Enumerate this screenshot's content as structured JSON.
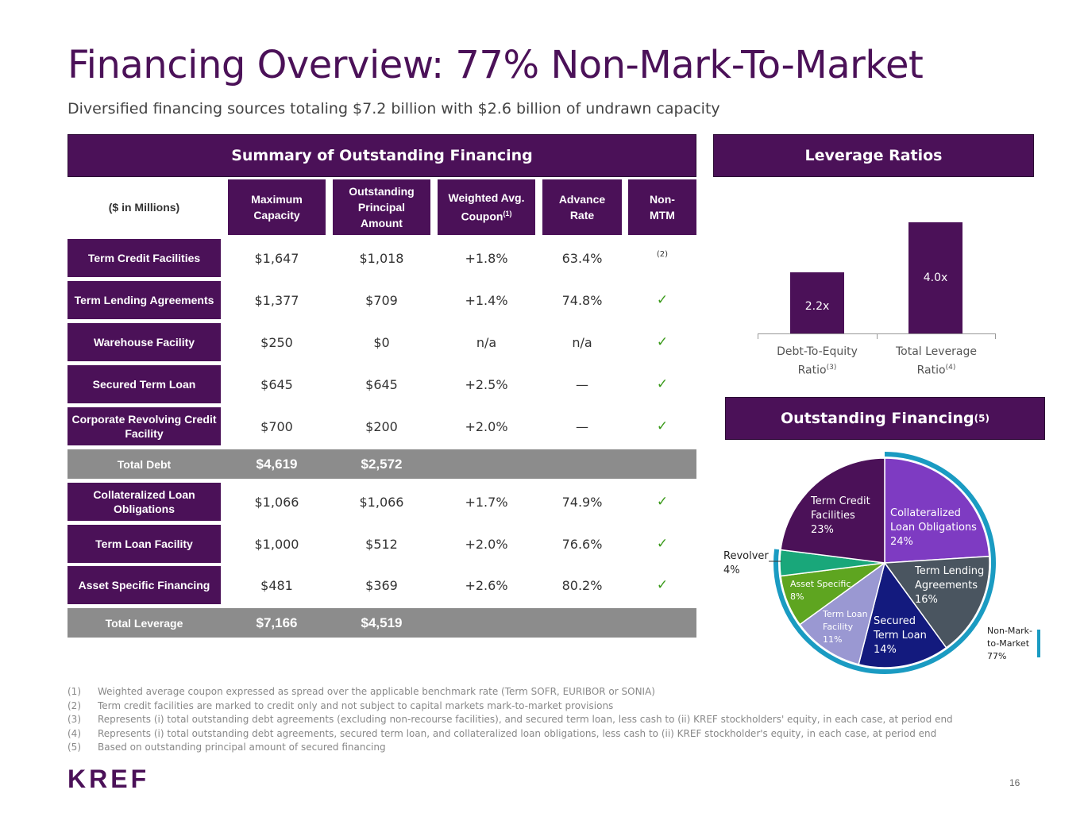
{
  "title": "Financing Overview: 77% Non-Mark-To-Market",
  "subtitle": "Diversified financing sources totaling $7.2 billion with $2.6 billion of undrawn capacity",
  "summary_panel": {
    "title": "Summary of Outstanding Financing",
    "corner_label": "($ in Millions)",
    "columns": [
      {
        "line1": "Maximum",
        "line2": "Capacity",
        "line3": "",
        "sup": ""
      },
      {
        "line1": "Outstanding",
        "line2": "Principal",
        "line3": "Amount",
        "sup": ""
      },
      {
        "line1": "Weighted Avg.",
        "line2": "Coupon",
        "line3": "",
        "sup": "(1)"
      },
      {
        "line1": "Advance",
        "line2": "Rate",
        "line3": "",
        "sup": ""
      },
      {
        "line1": "Non-",
        "line2": "MTM",
        "line3": "",
        "sup": ""
      }
    ],
    "rows": [
      {
        "label": "Term Credit Facilities",
        "max": "$1,647",
        "outstanding": "$1,018",
        "coupon": "+1.8%",
        "advance": "63.4%",
        "mtm": "(2)"
      },
      {
        "label": "Term Lending Agreements",
        "max": "$1,377",
        "outstanding": "$709",
        "coupon": "+1.4%",
        "advance": "74.8%",
        "mtm": "✓"
      },
      {
        "label": "Warehouse Facility",
        "max": "$250",
        "outstanding": "$0",
        "coupon": "n/a",
        "advance": "n/a",
        "mtm": "✓"
      },
      {
        "label": "Secured Term Loan",
        "max": "$645",
        "outstanding": "$645",
        "coupon": "+2.5%",
        "advance": "—",
        "mtm": "✓"
      },
      {
        "label": "Corporate Revolving Credit Facility",
        "max": "$700",
        "outstanding": "$200",
        "coupon": "+2.0%",
        "advance": "—",
        "mtm": "✓"
      }
    ],
    "total_debt": {
      "label": "Total Debt",
      "max": "$4,619",
      "outstanding": "$2,572"
    },
    "rows2": [
      {
        "label": "Collateralized Loan Obligations",
        "max": "$1,066",
        "outstanding": "$1,066",
        "coupon": "+1.7%",
        "advance": "74.9%",
        "mtm": "✓"
      },
      {
        "label": "Term Loan Facility",
        "max": "$1,000",
        "outstanding": "$512",
        "coupon": "+2.0%",
        "advance": "76.6%",
        "mtm": "✓"
      },
      {
        "label": "Asset Specific Financing",
        "max": "$481",
        "outstanding": "$369",
        "coupon": "+2.6%",
        "advance": "80.2%",
        "mtm": "✓"
      }
    ],
    "total_leverage": {
      "label": "Total Leverage",
      "max": "$7,166",
      "outstanding": "$4,519"
    }
  },
  "leverage_panel": {
    "title": "Leverage Ratios"
  },
  "pie_panel": {
    "title": "Outstanding Financing",
    "title_sup": "(5)",
    "arc_label": [
      "Non-Mark-",
      "to-Market",
      "77%"
    ]
  },
  "chart_data": [
    {
      "type": "bar",
      "title": "Leverage Ratios",
      "categories": [
        "Debt-To-Equity Ratio(3)",
        "Total Leverage Ratio(4)"
      ],
      "category_lines": [
        [
          "Debt-To-Equity",
          "Ratio",
          "(3)"
        ],
        [
          "Total Leverage",
          "Ratio",
          "(4)"
        ]
      ],
      "values": [
        2.2,
        4.0
      ],
      "value_labels": [
        "2.2x",
        "4.0x"
      ],
      "ylim": [
        0,
        4.5
      ]
    },
    {
      "type": "pie",
      "title": "Outstanding Financing(5)",
      "slices": [
        {
          "lines": [
            "Collateralized",
            "Loan Obligations",
            "24%"
          ],
          "value": 24,
          "color": "#7e3bc2"
        },
        {
          "lines": [
            "Term Lending",
            "Agreements",
            "16%"
          ],
          "value": 16,
          "color": "#4a5560"
        },
        {
          "lines": [
            "Secured",
            "Term Loan",
            "14%"
          ],
          "value": 14,
          "color": "#131a7e"
        },
        {
          "lines": [
            "Term Loan",
            "Facility",
            "11%"
          ],
          "value": 11,
          "color": "#9a98d2"
        },
        {
          "lines": [
            "Asset Specific",
            "8%"
          ],
          "value": 8,
          "color": "#5ea520"
        },
        {
          "lines": [
            "Revolver",
            "4%"
          ],
          "value": 4,
          "color": "#19a77a"
        },
        {
          "lines": [
            "Term Credit",
            "Facilities",
            "23%"
          ],
          "value": 23,
          "color": "#4b1158"
        }
      ],
      "non_mtm_percent": 77,
      "arc_color": "#1a9bc2"
    }
  ],
  "footnotes": [
    {
      "num": "(1)",
      "text": "Weighted average coupon expressed as spread over the applicable benchmark rate (Term SOFR, EURIBOR or SONIA)"
    },
    {
      "num": "(2)",
      "text": "Term credit facilities are marked to credit only and not subject to capital markets mark-to-market provisions"
    },
    {
      "num": "(3)",
      "text": "Represents (i) total outstanding debt agreements (excluding non-recourse facilities), and secured term loan, less cash to (ii) KREF stockholders' equity, in each case, at period end"
    },
    {
      "num": "(4)",
      "text": "Represents (i) total outstanding debt agreements, secured term loan, and collateralized loan obligations, less cash to (ii) KREF stockholder's equity, in each case, at period end"
    },
    {
      "num": "(5)",
      "text": "Based on outstanding principal amount of secured financing"
    }
  ],
  "logo": "KREF",
  "page_number": "16"
}
